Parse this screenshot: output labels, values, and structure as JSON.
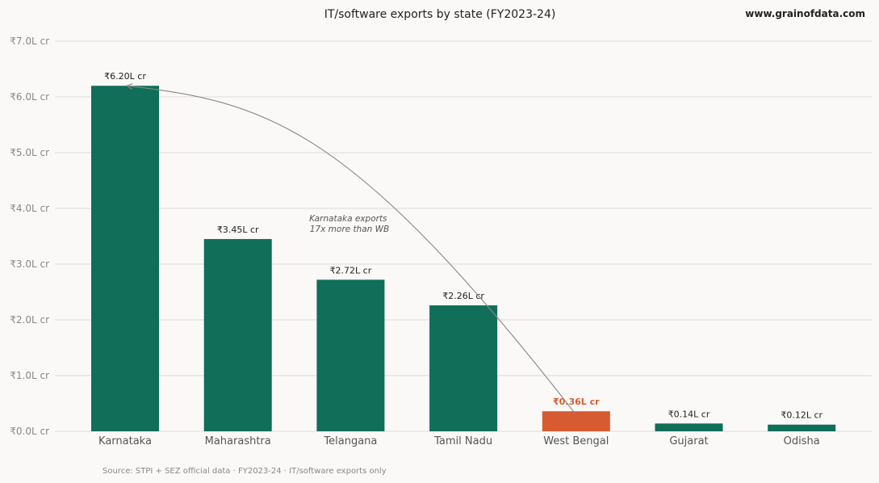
{
  "chart_data": {
    "type": "bar",
    "title": "IT/software exports by state (FY2023-24)",
    "brand": "www.grainofdata.com",
    "categories": [
      "Karnataka",
      "Maharashtra",
      "Telangana",
      "Tamil Nadu",
      "West Bengal",
      "Gujarat",
      "Odisha"
    ],
    "values": [
      6.2,
      3.45,
      2.72,
      2.26,
      0.36,
      0.14,
      0.12
    ],
    "value_labels": [
      "₹6.20L cr",
      "₹3.45L cr",
      "₹2.72L cr",
      "₹2.26L cr",
      "₹0.36L cr",
      "₹0.14L cr",
      "₹0.12L cr"
    ],
    "highlight_index": 4,
    "ylim": [
      0,
      7
    ],
    "yticks": [
      0,
      1,
      2,
      3,
      4,
      5,
      6,
      7
    ],
    "ytick_labels": [
      "₹0.0L cr",
      "₹1.0L cr",
      "₹2.0L cr",
      "₹3.0L cr",
      "₹4.0L cr",
      "₹5.0L cr",
      "₹6.0L cr",
      "₹7.0L cr"
    ],
    "grid": true,
    "colors": {
      "bar": "#116e58",
      "highlight": "#d75b30"
    },
    "annotation": {
      "lines": [
        "Karnataka exports",
        "17x more than WB"
      ],
      "from_category": "West Bengal",
      "to_category": "Karnataka"
    },
    "source": "Source: STPI + SEZ official data · FY2023-24 · IT/software exports only"
  }
}
